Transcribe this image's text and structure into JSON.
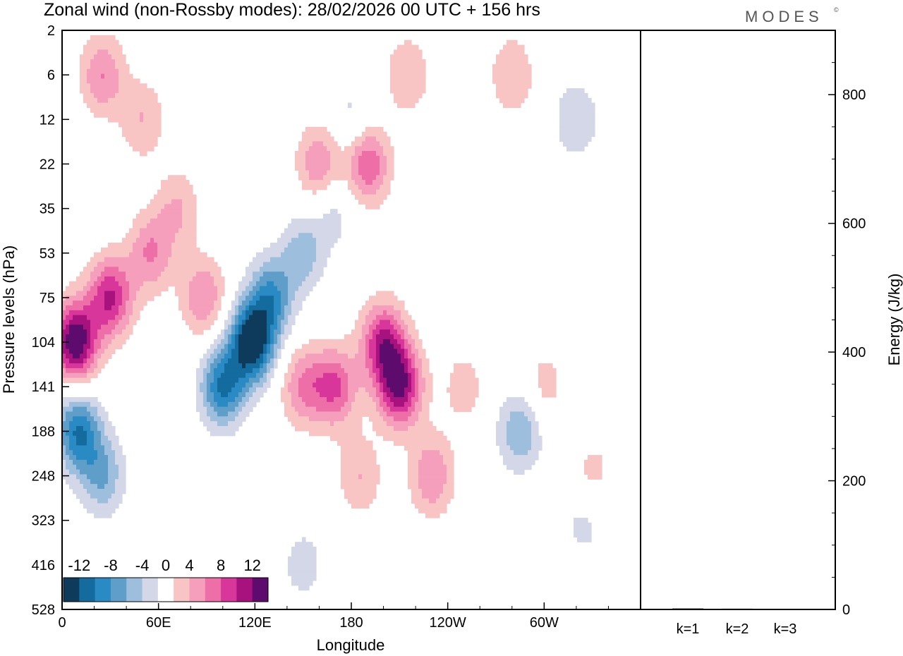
{
  "title": "Zonal wind (non-Rossby modes):  28/02/2026  00 UTC  + 156 hrs",
  "brand": "MODES",
  "brand_mark": "©",
  "chart_data": [
    {
      "type": "heatmap",
      "title": "Zonal wind (non-Rossby modes)",
      "xlabel": "Longitude",
      "ylabel": "Pressure levels (hPa)",
      "x_ticks": [
        "0",
        "60E",
        "120E",
        "180",
        "120W",
        "60W"
      ],
      "y_ticks": [
        "2",
        "6",
        "12",
        "22",
        "35",
        "53",
        "75",
        "104",
        "141",
        "188",
        "248",
        "323",
        "416",
        "528"
      ],
      "colorbar": {
        "labels": [
          "-12",
          "-8",
          "-4",
          "0",
          "4",
          "8",
          "12"
        ],
        "levels": [
          -14,
          -12,
          -10,
          -8,
          -6,
          -4,
          -2,
          2,
          4,
          6,
          8,
          10,
          12,
          14
        ],
        "colors": [
          "#0e3a5c",
          "#136b9e",
          "#2a8bc4",
          "#5e9ec9",
          "#9ebedd",
          "#d4d7e8",
          "#ffffff",
          "#f9c4c4",
          "#f59fbc",
          "#ee6fa8",
          "#d8369b",
          "#a8127f",
          "#5e0b6e"
        ]
      },
      "blobs": [
        {
          "lon": 8,
          "level": 104,
          "value": 14
        },
        {
          "lon": 30,
          "level": 75,
          "value": 10
        },
        {
          "lon": 55,
          "level": 53,
          "value": 6
        },
        {
          "lon": 72,
          "level": 35,
          "value": 4
        },
        {
          "lon": 25,
          "level": 6,
          "value": 6
        },
        {
          "lon": 50,
          "level": 12,
          "value": 4
        },
        {
          "lon": 10,
          "level": 188,
          "value": -10
        },
        {
          "lon": 25,
          "level": 248,
          "value": -6
        },
        {
          "lon": 100,
          "level": 141,
          "value": -10
        },
        {
          "lon": 118,
          "level": 104,
          "value": -14
        },
        {
          "lon": 130,
          "level": 75,
          "value": -8
        },
        {
          "lon": 150,
          "level": 53,
          "value": -5
        },
        {
          "lon": 170,
          "level": 35,
          "value": -3
        },
        {
          "lon": 88,
          "level": 75,
          "value": 6
        },
        {
          "lon": 160,
          "level": 22,
          "value": 6
        },
        {
          "lon": 190,
          "level": 22,
          "value": 8
        },
        {
          "lon": 215,
          "level": 6,
          "value": 4
        },
        {
          "lon": 150,
          "level": 141,
          "value": 6
        },
        {
          "lon": 170,
          "level": 141,
          "value": 8
        },
        {
          "lon": 200,
          "level": 104,
          "value": 10
        },
        {
          "lon": 210,
          "level": 141,
          "value": 12
        },
        {
          "lon": 230,
          "level": 248,
          "value": 6
        },
        {
          "lon": 185,
          "level": 248,
          "value": 4
        },
        {
          "lon": 250,
          "level": 141,
          "value": 3
        },
        {
          "lon": 300,
          "level": 141,
          "value": 3
        },
        {
          "lon": 330,
          "level": 248,
          "value": 3
        },
        {
          "lon": 285,
          "level": 188,
          "value": -6
        },
        {
          "lon": 325,
          "level": 323,
          "value": -3
        },
        {
          "lon": 280,
          "level": 6,
          "value": 4
        },
        {
          "lon": 320,
          "level": 12,
          "value": -4
        },
        {
          "lon": 150,
          "level": 416,
          "value": -3
        },
        {
          "lon": 180,
          "level": 12,
          "value": -3
        }
      ]
    },
    {
      "type": "bar",
      "title": "Energy",
      "categories": [
        "k=1",
        "k=2",
        "k=3"
      ],
      "values": [
        1.5,
        1.2,
        1.0
      ],
      "ylabel": "Energy (J/kg)",
      "y_ticks": [
        "0",
        "200",
        "400",
        "600",
        "800"
      ],
      "ylim": [
        0,
        900
      ]
    }
  ]
}
